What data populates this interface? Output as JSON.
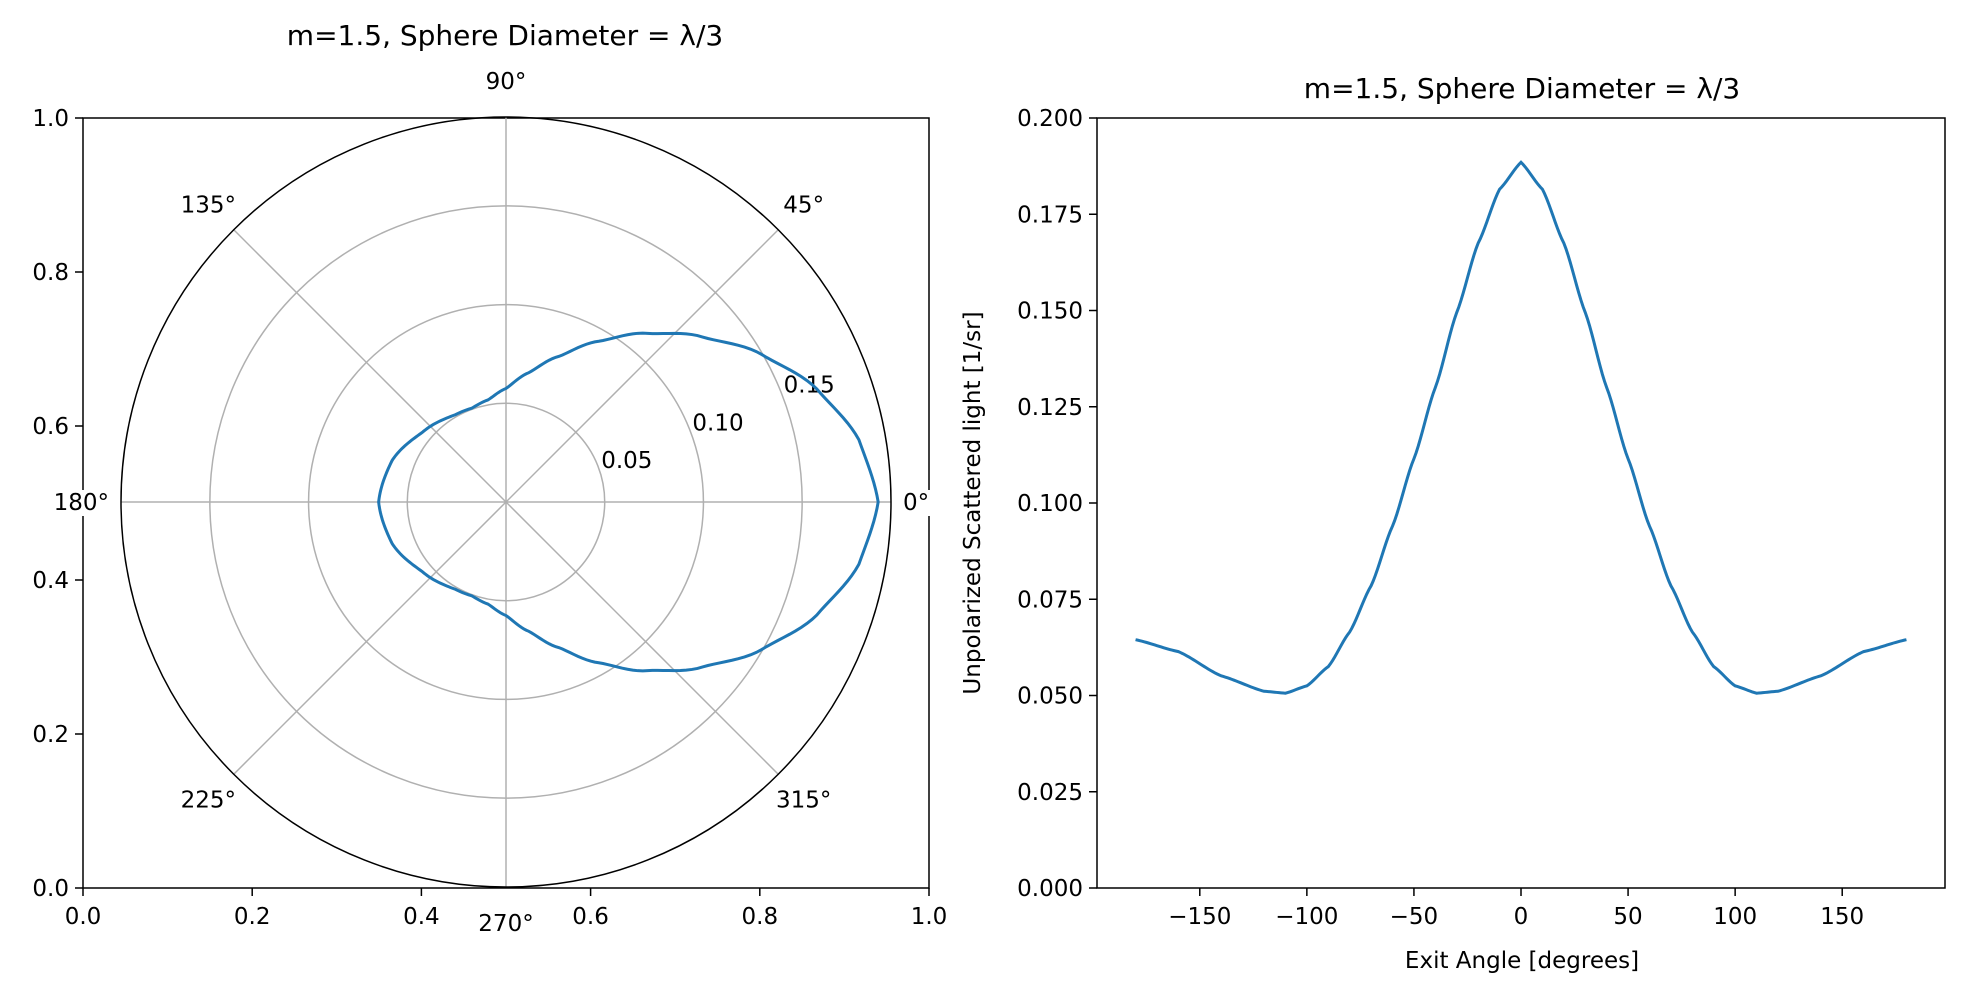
{
  "chart_data": [
    {
      "type": "line",
      "projection": "polar",
      "title": "m=1.5, Sphere Diameter = λ/3",
      "outer_axis": {
        "x_ticks": [
          "0.0",
          "0.2",
          "0.4",
          "0.6",
          "0.8",
          "1.0"
        ],
        "y_ticks": [
          "0.0",
          "0.2",
          "0.4",
          "0.6",
          "0.8",
          "1.0"
        ]
      },
      "theta_ticks_deg": [
        0,
        45,
        90,
        135,
        180,
        225,
        270,
        315
      ],
      "theta_tick_labels": [
        "0°",
        "45°",
        "90°",
        "135°",
        "180°",
        "225°",
        "270°",
        "315°"
      ],
      "r_ticks": [
        0.05,
        0.1,
        0.15
      ],
      "r_tick_labels": [
        "0.05",
        "0.10",
        "0.15"
      ],
      "rlim": [
        0,
        0.195
      ],
      "grid": true,
      "series_color": "#1f77b4"
    },
    {
      "type": "line",
      "title": "m=1.5, Sphere Diameter = λ/3",
      "xlabel": "Exit Angle [degrees]",
      "ylabel": "Unpolarized Scattered light [1/sr]",
      "xlim": [
        -198,
        198
      ],
      "ylim": [
        0,
        0.2
      ],
      "x_ticks": [
        -150,
        -100,
        -50,
        0,
        50,
        100,
        150
      ],
      "x_tick_labels": [
        "−150",
        "−100",
        "−50",
        "0",
        "50",
        "100",
        "150"
      ],
      "y_ticks": [
        0,
        0.025,
        0.05,
        0.075,
        0.1,
        0.125,
        0.15,
        0.175,
        0.2
      ],
      "y_tick_labels": [
        "0.000",
        "0.025",
        "0.050",
        "0.075",
        "0.100",
        "0.125",
        "0.150",
        "0.175",
        "0.200"
      ],
      "grid": false,
      "series_color": "#1f77b4",
      "series": [
        {
          "x": [
            -180,
            -160,
            -140,
            -120,
            -110,
            -100,
            -90,
            -80,
            -70,
            -60,
            -50,
            -40,
            -30,
            -20,
            -10,
            0,
            10,
            20,
            30,
            40,
            50,
            60,
            70,
            80,
            90,
            100,
            110,
            120,
            140,
            160,
            180
          ],
          "y": [
            0.0645,
            0.0614,
            0.0551,
            0.0511,
            0.0506,
            0.0525,
            0.0575,
            0.0665,
            0.0785,
            0.094,
            0.1115,
            0.13,
            0.1495,
            0.1675,
            0.1815,
            0.1885,
            0.1815,
            0.1675,
            0.1495,
            0.13,
            0.1115,
            0.094,
            0.0785,
            0.0665,
            0.0575,
            0.0525,
            0.0506,
            0.0511,
            0.0551,
            0.0614,
            0.0645
          ]
        }
      ]
    }
  ]
}
